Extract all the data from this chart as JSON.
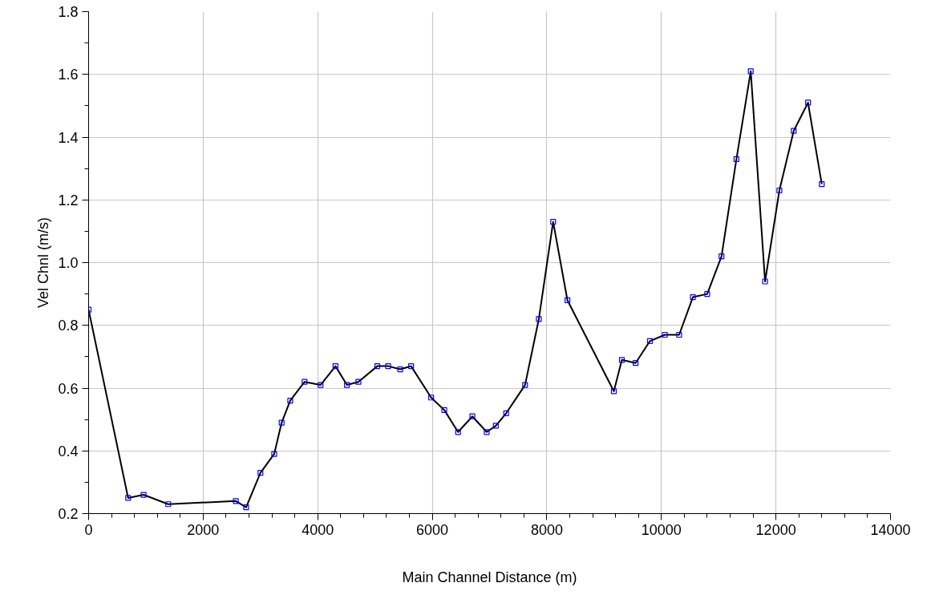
{
  "chart_data": {
    "type": "line",
    "xlabel": "Main Channel Distance (m)",
    "ylabel": "Vel Chnl (m/s)",
    "x": [
      0,
      690,
      960,
      1390,
      2570,
      2750,
      3000,
      3240,
      3370,
      3520,
      3770,
      4050,
      4310,
      4510,
      4710,
      5040,
      5230,
      5440,
      5630,
      5980,
      6210,
      6450,
      6700,
      6950,
      7110,
      7290,
      7620,
      7860,
      8110,
      8360,
      9170,
      9310,
      9550,
      9800,
      10060,
      10310,
      10550,
      10800,
      11050,
      11310,
      11560,
      11810,
      12060,
      12310,
      12560,
      12800
    ],
    "series": [
      {
        "color": "#000000",
        "values": [
          0.85,
          0.25,
          0.26,
          0.23,
          0.24,
          0.22,
          0.33,
          0.39,
          0.49,
          0.56,
          0.62,
          0.61,
          0.67,
          0.61,
          0.62,
          0.67,
          0.67,
          0.66,
          0.67,
          0.57,
          0.53,
          0.46,
          0.51,
          0.46,
          0.48,
          0.52,
          0.61,
          0.82,
          1.13,
          0.88,
          0.59,
          0.69,
          0.68,
          0.75,
          0.77,
          0.77,
          0.89,
          0.9,
          1.02,
          1.33,
          1.61,
          0.94,
          1.23,
          1.42,
          1.51,
          1.25
        ]
      }
    ],
    "xlim": [
      0,
      14000
    ],
    "ylim": [
      0.2,
      1.8
    ],
    "xticks": [
      0,
      2000,
      4000,
      6000,
      8000,
      10000,
      12000,
      14000
    ],
    "yticks": [
      0.2,
      0.4,
      0.6,
      0.8,
      {
        "value": 1.0,
        "label": "1.0"
      },
      1.2,
      1.4,
      1.6,
      1.8
    ],
    "grid": true,
    "marker": "square",
    "line_style": "solid"
  }
}
